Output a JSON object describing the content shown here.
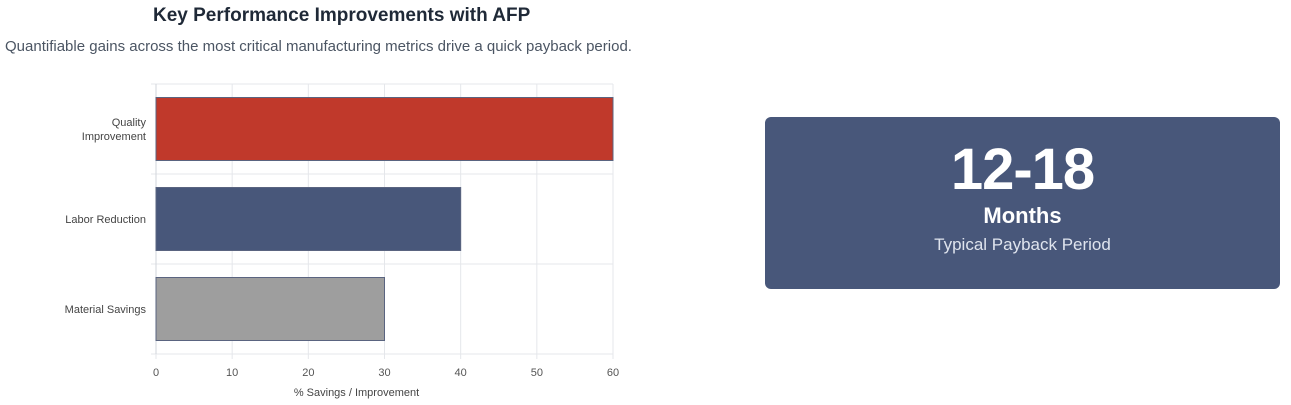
{
  "header": {
    "title": "Key Performance Improvements with AFP",
    "subtitle": "Quantifiable gains across the most critical manufacturing metrics drive a quick payback period."
  },
  "chart_data": {
    "type": "bar",
    "orientation": "horizontal",
    "categories": [
      [
        "Quality",
        "Improvement"
      ],
      [
        "Labor Reduction"
      ],
      [
        "Material Savings"
      ]
    ],
    "values": [
      60,
      40,
      30
    ],
    "colors": [
      "#c0392b",
      "#48577a",
      "#9e9e9e"
    ],
    "xlabel": "% Savings / Improvement",
    "ylabel": "",
    "xlim": [
      0,
      60
    ],
    "xticks": [
      0,
      10,
      20,
      30,
      40,
      50,
      60
    ],
    "grid": true
  },
  "payback": {
    "value": "12-18",
    "unit": "Months",
    "label": "Typical Payback Period"
  }
}
